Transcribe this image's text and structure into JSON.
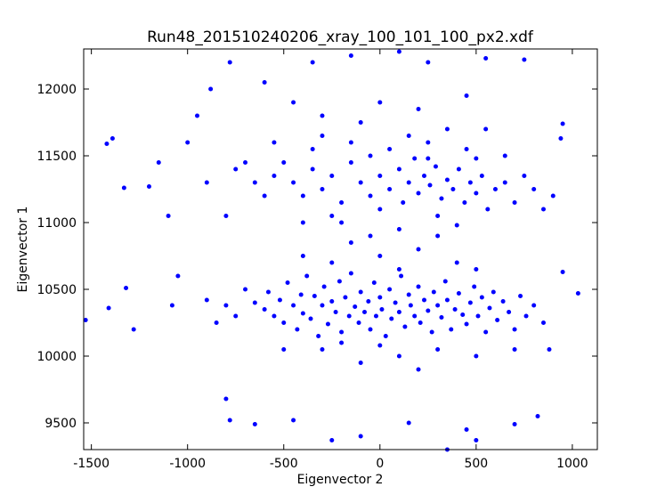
{
  "chart_data": {
    "type": "scatter",
    "title": "Run48_201510240206_xray_100_101_100_px2.xdf",
    "x_label": "Eigenvector 2",
    "y_label": "Eigenvector 1",
    "color": "#0000ff",
    "xlim": [
      -1540,
      1130
    ],
    "ylim": [
      9300,
      12300
    ],
    "xticks": [
      -1500,
      -1000,
      -500,
      0,
      500,
      1000
    ],
    "yticks": [
      9500,
      10000,
      10500,
      11000,
      11500,
      12000
    ],
    "grid": false,
    "x": [
      -650,
      -600,
      -580,
      -550,
      -520,
      -500,
      -480,
      -450,
      -430,
      -410,
      -400,
      -380,
      -360,
      -340,
      -320,
      -300,
      -290,
      -270,
      -250,
      -230,
      -210,
      -200,
      -180,
      -160,
      -150,
      -130,
      -110,
      -100,
      -80,
      -60,
      -50,
      -30,
      -20,
      0,
      10,
      30,
      50,
      60,
      80,
      100,
      110,
      130,
      150,
      160,
      180,
      200,
      210,
      230,
      250,
      270,
      280,
      300,
      320,
      340,
      350,
      370,
      390,
      410,
      430,
      450,
      470,
      490,
      510,
      530,
      550,
      570,
      590,
      610,
      640,
      670,
      700,
      730,
      760,
      800,
      850,
      -750,
      -700,
      -800,
      -850,
      -900,
      -250,
      0,
      200,
      400,
      -150,
      300,
      -400,
      100,
      500,
      -50,
      -300,
      100,
      300,
      -100,
      500,
      -500,
      200,
      700,
      -200,
      0,
      -450,
      -400,
      -350,
      -300,
      -250,
      -200,
      -150,
      -100,
      -50,
      0,
      50,
      100,
      120,
      150,
      180,
      200,
      230,
      260,
      290,
      320,
      350,
      380,
      410,
      440,
      470,
      500,
      530,
      560,
      600,
      650,
      -550,
      -600,
      -500,
      -350,
      -150,
      50,
      250,
      450,
      150,
      -250,
      0,
      300,
      700,
      750,
      -650,
      -700,
      -200,
      100,
      400,
      -400,
      350,
      -100,
      550,
      -300,
      200,
      0,
      -450,
      450,
      650,
      800,
      -800,
      -750,
      -900,
      850,
      900,
      -50,
      500,
      -300,
      -550,
      250,
      -1530,
      -1410,
      -1420,
      -1390,
      -1320,
      -1330,
      -1280,
      -1200,
      -1150,
      -1100,
      -1050,
      -1000,
      -1080,
      -950,
      -880,
      -780,
      -600,
      -350,
      -150,
      100,
      250,
      550,
      750,
      950,
      940,
      1030,
      950,
      880,
      -780,
      -650,
      -450,
      -250,
      -100,
      150,
      450,
      500,
      700,
      820,
      -800,
      350
    ],
    "values": [
      10400,
      10350,
      10480,
      10300,
      10420,
      10250,
      10550,
      10380,
      10200,
      10460,
      10320,
      10600,
      10280,
      10450,
      10150,
      10380,
      10520,
      10240,
      10410,
      10330,
      10560,
      10180,
      10440,
      10300,
      10620,
      10370,
      10250,
      10480,
      10330,
      10410,
      10200,
      10550,
      10300,
      10440,
      10350,
      10150,
      10500,
      10280,
      10400,
      10330,
      10600,
      10220,
      10460,
      10380,
      10300,
      10520,
      10250,
      10420,
      10340,
      10180,
      10480,
      10380,
      10290,
      10560,
      10420,
      10200,
      10350,
      10470,
      10310,
      10240,
      10400,
      10520,
      10300,
      10440,
      10180,
      10360,
      10480,
      10270,
      10410,
      10330,
      10200,
      10450,
      10300,
      10380,
      10250,
      10300,
      10500,
      10380,
      10250,
      10420,
      10700,
      10750,
      10800,
      10700,
      10850,
      10900,
      10750,
      10650,
      10650,
      10900,
      10050,
      10000,
      10050,
      9950,
      10000,
      10050,
      9900,
      10050,
      10100,
      10080,
      11300,
      11200,
      11400,
      11250,
      11350,
      11150,
      11450,
      11300,
      11200,
      11350,
      11250,
      11400,
      11150,
      11300,
      11480,
      11220,
      11350,
      11280,
      11420,
      11180,
      11320,
      11250,
      11400,
      11150,
      11300,
      11220,
      11350,
      11100,
      11250,
      11300,
      11350,
      11200,
      11450,
      11550,
      11600,
      11550,
      11600,
      11550,
      11650,
      11050,
      11100,
      11050,
      11150,
      11350,
      11300,
      11450,
      11000,
      10950,
      10980,
      11000,
      11700,
      11750,
      11700,
      11800,
      11850,
      11900,
      11900,
      11950,
      11500,
      11250,
      11050,
      11400,
      11300,
      11100,
      11200,
      11500,
      11480,
      11650,
      11600,
      11480,
      10270,
      10360,
      11590,
      11630,
      10510,
      11260,
      10200,
      11270,
      11450,
      11050,
      10600,
      11600,
      10380,
      11800,
      12000,
      12200,
      12050,
      12200,
      12250,
      12280,
      12200,
      12230,
      12220,
      11740,
      11630,
      10470,
      10630,
      10050,
      9520,
      9490,
      9520,
      9370,
      9400,
      9500,
      9450,
      9370,
      9490,
      9550,
      9680,
      9300
    ]
  }
}
